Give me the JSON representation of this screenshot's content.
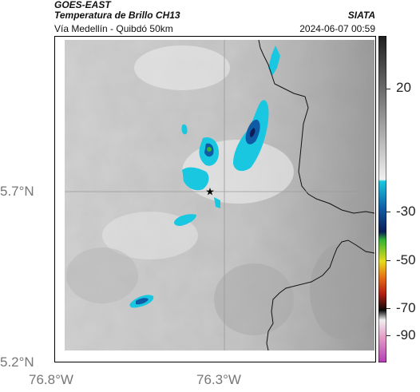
{
  "header": {
    "satellite": "GOES-EAST",
    "product": "Temperatura de Brillo CH13",
    "route": "Vía Medellín - Quibdó 50km",
    "source": "SIATA",
    "datetime": "2024-06-07 00:59"
  },
  "axes": {
    "y_ticks": [
      "5.7°N",
      "5.2°N"
    ],
    "x_ticks": [
      "76.8°W",
      "76.3°W"
    ]
  },
  "colorbar": {
    "ticks": [
      "20",
      "-30",
      "-50",
      "-70",
      "-90"
    ],
    "tick_values": [
      20,
      -30,
      -50,
      -70,
      -90
    ],
    "colors": {
      "warm_dark": "#1e1e1e",
      "warm_light": "#f0f0f0",
      "cyan": "#19c8e0",
      "blue": "#0f5aa5",
      "navy": "#0a1e55",
      "green": "#32b432",
      "yellow": "#e6dc1e",
      "orange": "#e66e14",
      "red": "#b41e14",
      "black": "#0a0a0a",
      "pink": "#e6a0c8",
      "magenta": "#b43cb4"
    }
  },
  "map": {
    "background_color": "#cfcfcf",
    "marker_icon": "star-icon",
    "gridline_color": "#9a9a9a",
    "border_color": "#111111"
  }
}
